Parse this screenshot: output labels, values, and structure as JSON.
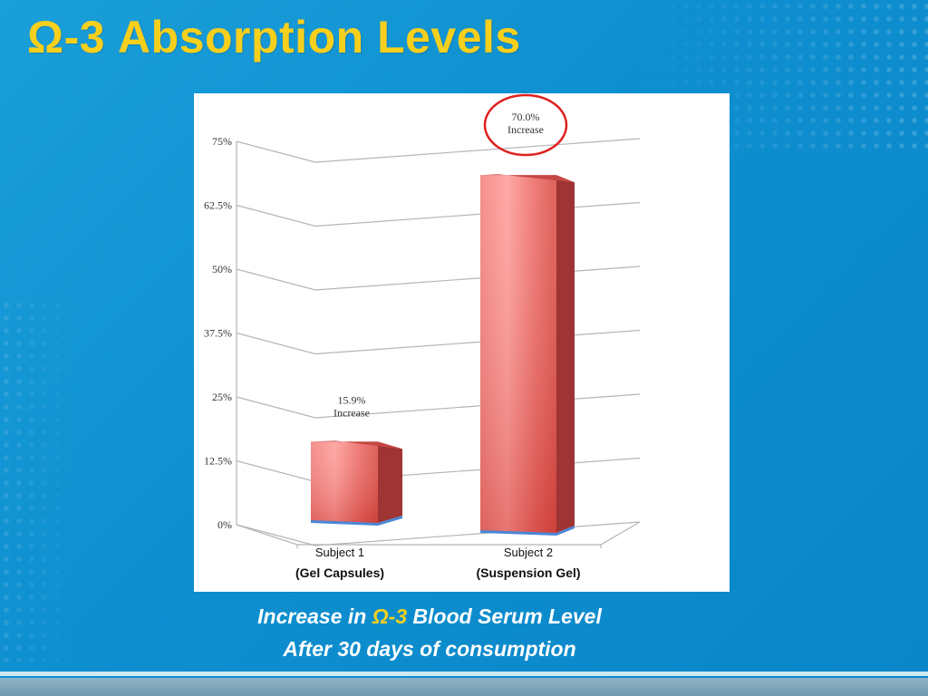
{
  "slide": {
    "title_omega": "Ω-3",
    "title_rest": "Absorption Levels",
    "caption_line1_pre": "Increase in ",
    "caption_line1_omega": "Ω-3",
    "caption_line1_post": " Blood Serum Level",
    "caption_line2": "After 30 days of consumption"
  },
  "colors": {
    "title": "#f7cf1d",
    "background": "#0e8fd0",
    "bar_front": "#e0504c",
    "bar_highlight": "#ff9a96",
    "bar_side": "#9e3433",
    "bar_top": "#c44744",
    "base_accent": "#4a86d6",
    "callout_circle": "#e02020"
  },
  "chart_data": {
    "type": "bar",
    "categories": [
      "Subject 1",
      "Subject 2"
    ],
    "category_sublabels": [
      "(Gel Capsules)",
      "(Suspension Gel)"
    ],
    "values": [
      15.9,
      70.0
    ],
    "value_labels": [
      [
        "15.9%",
        "Increase"
      ],
      [
        "70.0%",
        "Increase"
      ]
    ],
    "yticks": [
      "0%",
      "12.5%",
      "25%",
      "37.5%",
      "50%",
      "62.5%",
      "75%"
    ],
    "ylim": [
      0,
      75
    ],
    "grid": true,
    "title": "",
    "xlabel": "",
    "ylabel": ""
  }
}
